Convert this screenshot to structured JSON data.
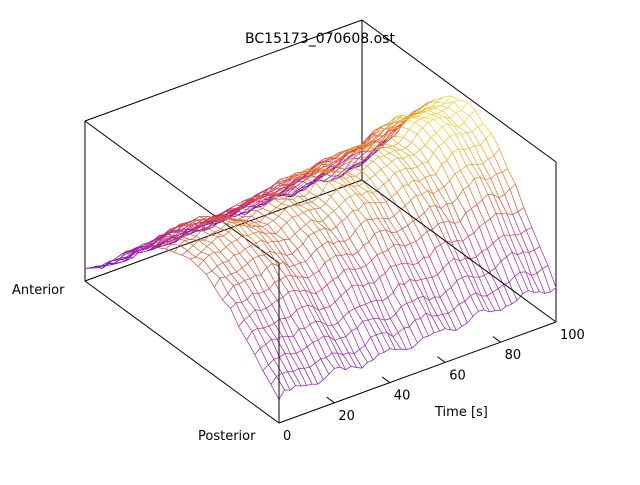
{
  "chart_data": {
    "type": "surface",
    "title": "BC15173_070608.ost",
    "xlabel": "Time [s]",
    "x_ticks": [
      "0",
      "20",
      "40",
      "60",
      "80",
      "100"
    ],
    "x_range": [
      0,
      100
    ],
    "y_end_labels": {
      "near": "Posterior",
      "far": "Anterior"
    },
    "zlabel": "",
    "mesh": {
      "time_steps": 51,
      "positions": 25
    },
    "surface_description": "arched intensity profile across Posterior-Anterior, peak near the middle, rising with time",
    "ridge_profile_over_time": {
      "time": [
        0,
        10,
        20,
        30,
        40,
        50,
        60,
        70,
        80,
        90,
        100
      ],
      "relative_peak_height": [
        0.62,
        0.74,
        0.72,
        0.7,
        0.75,
        0.8,
        0.82,
        0.85,
        0.9,
        0.97,
        1.0
      ]
    },
    "colormap": [
      "#4b0fb0",
      "#9a18c8",
      "#c5237a",
      "#e0512a",
      "#f0a820",
      "#f5f040"
    ],
    "grid": false,
    "box": true,
    "legend": "none"
  }
}
